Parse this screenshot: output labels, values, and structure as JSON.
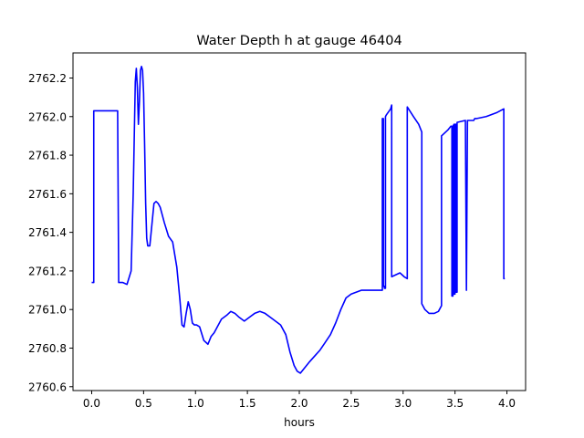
{
  "chart_data": {
    "type": "line",
    "title": "Water Depth h at gauge 46404",
    "xlabel": "hours",
    "ylabel": "",
    "xlim": [
      -0.18,
      4.18
    ],
    "ylim": [
      2760.58,
      2762.33
    ],
    "xticks": [
      0.0,
      0.5,
      1.0,
      1.5,
      2.0,
      2.5,
      3.0,
      3.5,
      4.0
    ],
    "xtick_labels": [
      "0.0",
      "0.5",
      "1.0",
      "1.5",
      "2.0",
      "2.5",
      "3.0",
      "3.5",
      "4.0"
    ],
    "yticks": [
      2760.6,
      2760.8,
      2761.0,
      2761.2,
      2761.4,
      2761.6,
      2761.8,
      2762.0,
      2762.2
    ],
    "ytick_labels": [
      "2760.6",
      "2760.8",
      "2761.0",
      "2761.2",
      "2761.4",
      "2761.6",
      "2761.8",
      "2762.0",
      "2762.2"
    ],
    "grid": false,
    "series": [
      {
        "color": "#0000ff",
        "x": [
          0.0,
          0.02,
          0.02,
          0.25,
          0.26,
          0.3,
          0.34,
          0.38,
          0.4,
          0.42,
          0.43,
          0.44,
          0.45,
          0.46,
          0.47,
          0.48,
          0.49,
          0.5,
          0.51,
          0.52,
          0.53,
          0.54,
          0.56,
          0.58,
          0.6,
          0.62,
          0.64,
          0.66,
          0.68,
          0.7,
          0.74,
          0.78,
          0.82,
          0.85,
          0.87,
          0.89,
          0.91,
          0.93,
          0.95,
          0.97,
          0.99,
          1.01,
          1.04,
          1.08,
          1.12,
          1.15,
          1.18,
          1.21,
          1.25,
          1.3,
          1.34,
          1.38,
          1.42,
          1.47,
          1.52,
          1.57,
          1.62,
          1.67,
          1.72,
          1.77,
          1.82,
          1.87,
          1.91,
          1.95,
          1.98,
          2.01,
          2.04,
          2.07,
          2.1,
          2.15,
          2.2,
          2.25,
          2.3,
          2.35,
          2.4,
          2.45,
          2.5,
          2.55,
          2.6,
          2.65,
          2.7,
          2.75,
          2.8,
          2.8,
          2.81,
          2.81,
          2.82,
          2.82,
          2.83,
          2.83,
          2.84,
          2.88,
          2.89,
          2.89,
          2.93,
          2.97,
          2.99,
          3.01,
          3.04,
          3.04,
          3.1,
          3.15,
          3.18,
          3.18,
          3.21,
          3.25,
          3.3,
          3.34,
          3.37,
          3.37,
          3.43,
          3.46,
          3.47,
          3.47,
          3.48,
          3.48,
          3.49,
          3.49,
          3.5,
          3.5,
          3.51,
          3.51,
          3.52,
          3.52,
          3.6,
          3.6,
          3.61,
          3.61,
          3.62,
          3.62,
          3.68,
          3.69,
          3.71,
          3.8,
          3.9,
          3.97,
          3.97,
          3.98
        ],
        "y": [
          2761.14,
          2761.14,
          2762.03,
          2762.03,
          2761.14,
          2761.14,
          2761.13,
          2761.2,
          2761.6,
          2762.18,
          2762.25,
          2762.15,
          2761.96,
          2762.08,
          2762.24,
          2762.26,
          2762.24,
          2762.12,
          2761.85,
          2761.55,
          2761.37,
          2761.33,
          2761.33,
          2761.44,
          2761.55,
          2761.56,
          2761.55,
          2761.53,
          2761.49,
          2761.45,
          2761.38,
          2761.35,
          2761.22,
          2761.05,
          2760.92,
          2760.91,
          2760.98,
          2761.04,
          2761.0,
          2760.93,
          2760.92,
          2760.92,
          2760.91,
          2760.84,
          2760.82,
          2760.86,
          2760.88,
          2760.91,
          2760.95,
          2760.97,
          2760.99,
          2760.98,
          2760.96,
          2760.94,
          2760.96,
          2760.98,
          2760.99,
          2760.98,
          2760.96,
          2760.94,
          2760.92,
          2760.87,
          2760.78,
          2760.71,
          2760.68,
          2760.67,
          2760.69,
          2760.71,
          2760.73,
          2760.76,
          2760.79,
          2760.83,
          2760.87,
          2760.93,
          2761.0,
          2761.06,
          2761.08,
          2761.09,
          2761.1,
          2761.1,
          2761.1,
          2761.1,
          2761.1,
          2761.99,
          2761.99,
          2761.12,
          2761.12,
          2761.11,
          2761.11,
          2762.0,
          2762.01,
          2762.04,
          2762.06,
          2761.17,
          2761.18,
          2761.19,
          2761.18,
          2761.17,
          2761.16,
          2762.05,
          2762.0,
          2761.96,
          2761.92,
          2761.03,
          2761.0,
          2760.98,
          2760.98,
          2760.99,
          2761.02,
          2761.9,
          2761.93,
          2761.95,
          2761.95,
          2761.07,
          2761.07,
          2761.95,
          2761.96,
          2761.08,
          2761.08,
          2761.96,
          2761.96,
          2761.09,
          2761.09,
          2761.97,
          2761.98,
          2761.98,
          2761.1,
          2761.1,
          2761.98,
          2761.98,
          2761.98,
          2761.99,
          2761.99,
          2762.0,
          2762.02,
          2762.04,
          2761.16,
          2761.16
        ]
      }
    ]
  }
}
